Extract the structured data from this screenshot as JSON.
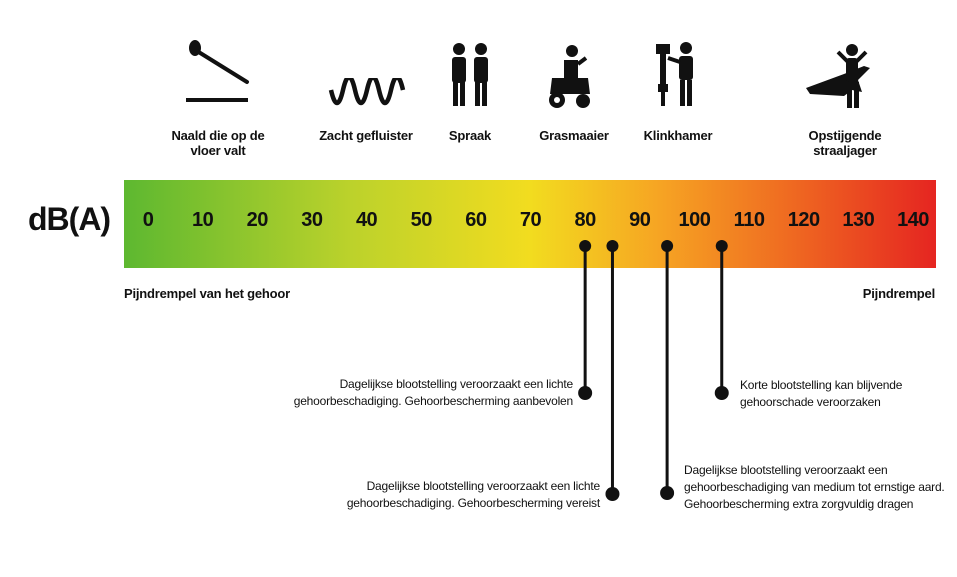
{
  "axis": {
    "title": "dB(A)"
  },
  "scale": {
    "min": 0,
    "max": 140,
    "ticks": [
      "0",
      "10",
      "20",
      "30",
      "40",
      "50",
      "60",
      "70",
      "80",
      "90",
      "100",
      "110",
      "120",
      "130",
      "140"
    ]
  },
  "sources": [
    {
      "label": "Naald die op de vloer valt",
      "icon": "needle-icon"
    },
    {
      "label": "Zacht gefluister",
      "icon": "whisper-wave-icon"
    },
    {
      "label": "Spraak",
      "icon": "people-talking-icon"
    },
    {
      "label": "Grasmaaier",
      "icon": "lawn-mower-icon"
    },
    {
      "label": "Klinkhamer",
      "icon": "jackhammer-icon"
    },
    {
      "label": "Opstijgende straaljager",
      "icon": "fighter-jet-icon"
    }
  ],
  "edges": {
    "left": "Pijndrempel van het gehoor",
    "right": "Pijndrempel"
  },
  "markers": [
    {
      "db": 80,
      "text_line1": "Dagelijkse blootstelling veroorzaakt een lichte",
      "text_line2": "gehoorbeschadiging. Gehoorbescherming aanbevolen",
      "text_line3": ""
    },
    {
      "db": 85,
      "text_line1": "Dagelijkse blootstelling veroorzaakt een lichte",
      "text_line2": "gehoorbeschadiging. Gehoorbescherming vereist",
      "text_line3": ""
    },
    {
      "db": 95,
      "text_line1": "Dagelijkse blootstelling veroorzaakt een",
      "text_line2": "gehoorbeschadiging van medium tot ernstige aard.",
      "text_line3": "Gehoorbescherming extra zorgvuldig dragen"
    },
    {
      "db": 105,
      "text_line1": "Korte blootstelling kan blijvende",
      "text_line2": "gehoorschade veroorzaken",
      "text_line3": ""
    }
  ],
  "colors": {
    "gradient_start": "#5db830",
    "gradient_mid": "#f2dc1f",
    "gradient_end": "#e52521",
    "ink": "#111111"
  }
}
